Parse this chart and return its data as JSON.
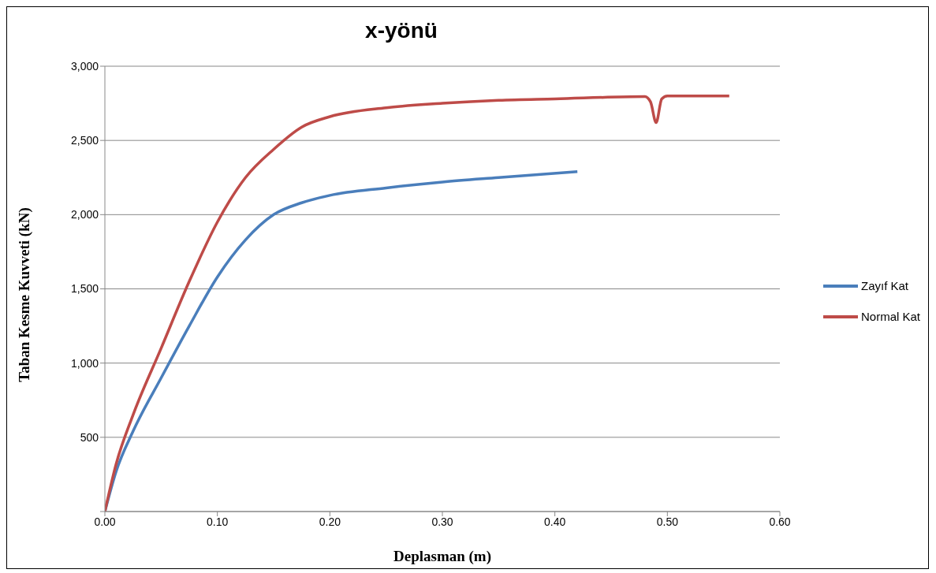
{
  "chart_data": {
    "type": "line",
    "title": "x-yönü",
    "xlabel": "Deplasman (m)",
    "ylabel": "Taban Kesme Kuvveti (kN)",
    "xlim": [
      0,
      0.6
    ],
    "xticks": [
      {
        "value": 0,
        "label": "0.00"
      },
      {
        "value": 0.1,
        "label": "0.10"
      },
      {
        "value": 0.2,
        "label": "0.20"
      },
      {
        "value": 0.3,
        "label": "0.30"
      },
      {
        "value": 0.4,
        "label": "0.40"
      },
      {
        "value": 0.5,
        "label": "0.50"
      },
      {
        "value": 0.6,
        "label": "0.60"
      }
    ],
    "ylim": [
      0,
      3000
    ],
    "yticks": [
      {
        "value": 0,
        "label": null
      },
      {
        "value": 500,
        "label": "500"
      },
      {
        "value": 1000,
        "label": "1,000"
      },
      {
        "value": 1500,
        "label": "1,500"
      },
      {
        "value": 2000,
        "label": "2,000"
      },
      {
        "value": 2500,
        "label": "2,500"
      },
      {
        "value": 3000,
        "label": "3,000"
      }
    ],
    "grid": "y",
    "legend": "right",
    "marker": "none",
    "line_style": "solid",
    "series": [
      {
        "name": "Zayıf Kat",
        "color": "#4a7ebb",
        "x": [
          0,
          0.01,
          0.025,
          0.05,
          0.075,
          0.1,
          0.125,
          0.15,
          0.175,
          0.2,
          0.25,
          0.3,
          0.35,
          0.42
        ],
        "values": [
          0,
          270,
          540,
          900,
          1250,
          1580,
          1830,
          2000,
          2080,
          2130,
          2180,
          2220,
          2250,
          2290
        ]
      },
      {
        "name": "Normal Kat",
        "color": "#be4b48",
        "x": [
          0,
          0.01,
          0.025,
          0.05,
          0.075,
          0.1,
          0.125,
          0.15,
          0.175,
          0.2,
          0.25,
          0.3,
          0.35,
          0.4,
          0.48,
          0.485,
          0.49,
          0.495,
          0.5,
          0.555
        ],
        "values": [
          0,
          320,
          650,
          1100,
          1550,
          1950,
          2250,
          2440,
          2590,
          2660,
          2720,
          2750,
          2770,
          2780,
          2795,
          2760,
          2620,
          2780,
          2800,
          2800
        ]
      }
    ]
  }
}
